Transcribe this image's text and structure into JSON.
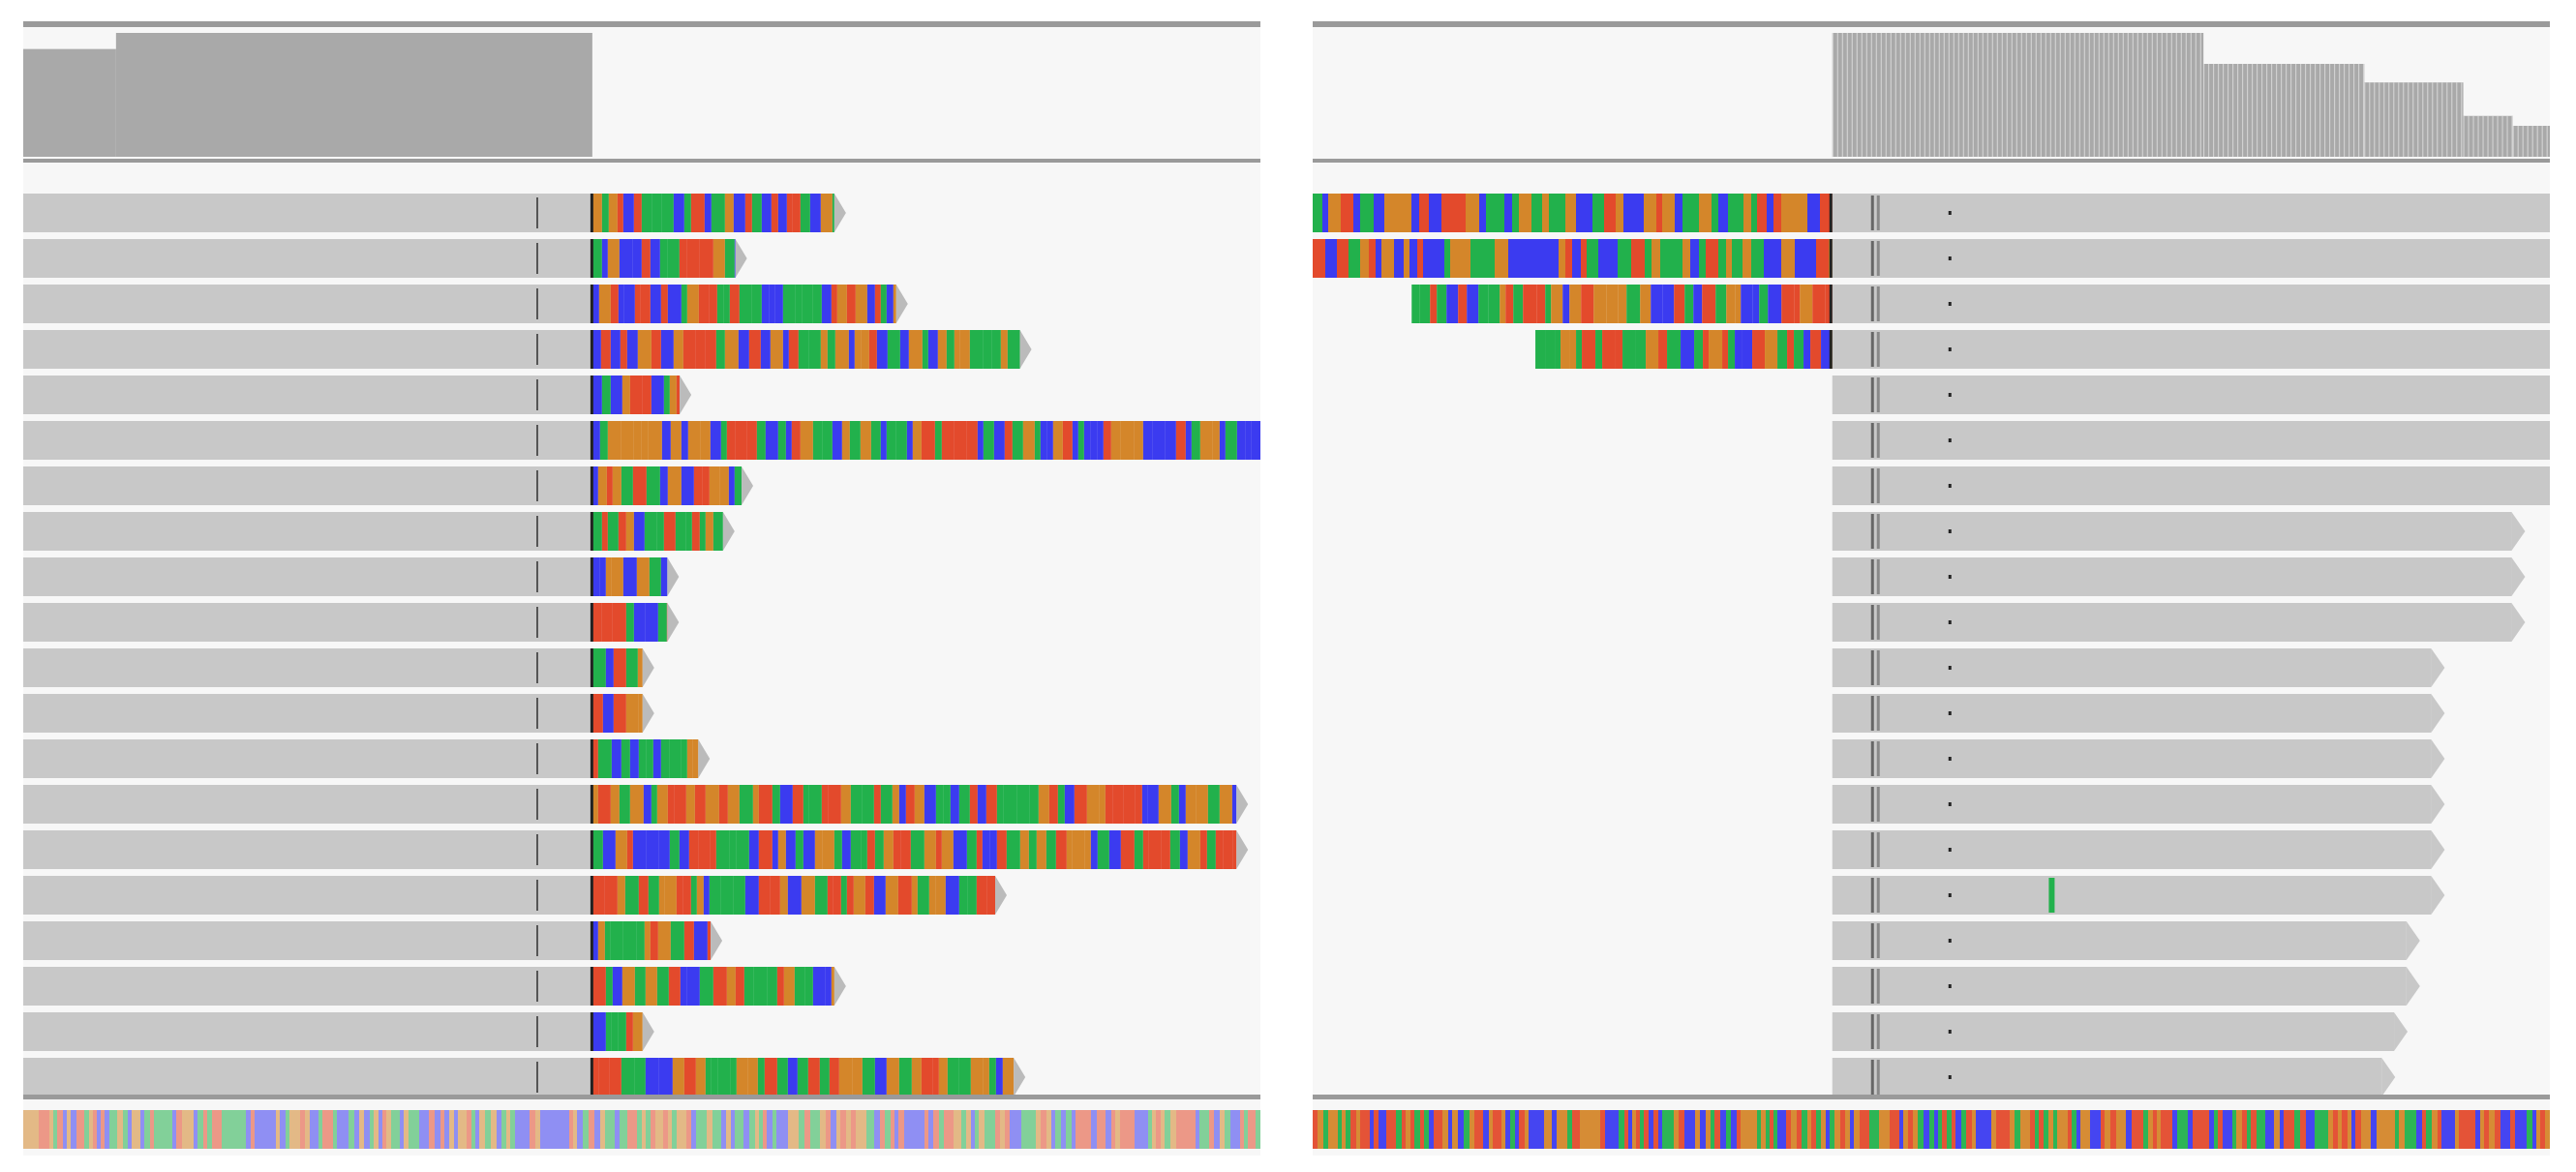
{
  "colors": {
    "A": "#22b14c",
    "C": "#3b3bf0",
    "G": "#d4862a",
    "T": "#e34a2c",
    "read": "#c8c8c8",
    "coverage": "#a9a9a9",
    "background": "#f7f7f7",
    "rule": "#9a9a9a"
  },
  "panels": [
    {
      "id": "left",
      "coverage": [
        {
          "from": 0.0,
          "to": 0.075,
          "level": 0.87
        },
        {
          "from": 0.075,
          "to": 0.46,
          "level": 1.0
        },
        {
          "from": 0.46,
          "to": 1.0,
          "level": 0.0
        }
      ],
      "reads": [
        {
          "aligned_end": 0.46,
          "clip_end": 0.665
        },
        {
          "aligned_end": 0.46,
          "clip_end": 0.585
        },
        {
          "aligned_end": 0.46,
          "clip_end": 0.715
        },
        {
          "aligned_end": 0.46,
          "clip_end": 0.815
        },
        {
          "aligned_end": 0.46,
          "clip_end": 0.54
        },
        {
          "aligned_end": 0.46,
          "clip_end": 1.0
        },
        {
          "aligned_end": 0.46,
          "clip_end": 0.59
        },
        {
          "aligned_end": 0.46,
          "clip_end": 0.575
        },
        {
          "aligned_end": 0.46,
          "clip_end": 0.53
        },
        {
          "aligned_end": 0.46,
          "clip_end": 0.53
        },
        {
          "aligned_end": 0.46,
          "clip_end": 0.51
        },
        {
          "aligned_end": 0.46,
          "clip_end": 0.51
        },
        {
          "aligned_end": 0.46,
          "clip_end": 0.555
        },
        {
          "aligned_end": 0.46,
          "clip_end": 0.99
        },
        {
          "aligned_end": 0.46,
          "clip_end": 0.99
        },
        {
          "aligned_end": 0.46,
          "clip_end": 0.795
        },
        {
          "aligned_end": 0.46,
          "clip_end": 0.565
        },
        {
          "aligned_end": 0.46,
          "clip_end": 0.665
        },
        {
          "aligned_end": 0.46,
          "clip_end": 0.51
        },
        {
          "aligned_end": 0.46,
          "clip_end": 0.81
        }
      ]
    },
    {
      "id": "right",
      "coverage": [
        {
          "from": 0.0,
          "to": 0.42,
          "level": 0.0
        },
        {
          "from": 0.42,
          "to": 0.72,
          "level": 1.0
        },
        {
          "from": 0.72,
          "to": 0.85,
          "level": 0.75
        },
        {
          "from": 0.85,
          "to": 0.93,
          "level": 0.6
        },
        {
          "from": 0.93,
          "to": 0.97,
          "level": 0.33
        },
        {
          "from": 0.97,
          "to": 1.0,
          "level": 0.25
        }
      ],
      "reads": [
        {
          "clip_start": 0.0,
          "aligned_start": 0.42,
          "aligned_end": 1.0
        },
        {
          "clip_start": 0.0,
          "aligned_start": 0.42,
          "aligned_end": 1.0
        },
        {
          "clip_start": 0.08,
          "aligned_start": 0.42,
          "aligned_end": 1.0
        },
        {
          "clip_start": 0.18,
          "aligned_start": 0.42,
          "aligned_end": 1.0
        },
        {
          "aligned_start": 0.42,
          "aligned_end": 1.0
        },
        {
          "aligned_start": 0.42,
          "aligned_end": 1.0
        },
        {
          "aligned_start": 0.42,
          "aligned_end": 1.0
        },
        {
          "aligned_start": 0.42,
          "aligned_end": 0.98
        },
        {
          "aligned_start": 0.42,
          "aligned_end": 0.98
        },
        {
          "aligned_start": 0.42,
          "aligned_end": 0.98
        },
        {
          "aligned_start": 0.42,
          "aligned_end": 0.915
        },
        {
          "aligned_start": 0.42,
          "aligned_end": 0.915
        },
        {
          "aligned_start": 0.42,
          "aligned_end": 0.915
        },
        {
          "aligned_start": 0.42,
          "aligned_end": 0.915
        },
        {
          "aligned_start": 0.42,
          "aligned_end": 0.915
        },
        {
          "aligned_start": 0.42,
          "aligned_end": 0.915,
          "mismatch": 0.595
        },
        {
          "aligned_start": 0.42,
          "aligned_end": 0.895
        },
        {
          "aligned_start": 0.42,
          "aligned_end": 0.895
        },
        {
          "aligned_start": 0.42,
          "aligned_end": 0.885
        },
        {
          "aligned_start": 0.42,
          "aligned_end": 0.875
        }
      ]
    }
  ]
}
